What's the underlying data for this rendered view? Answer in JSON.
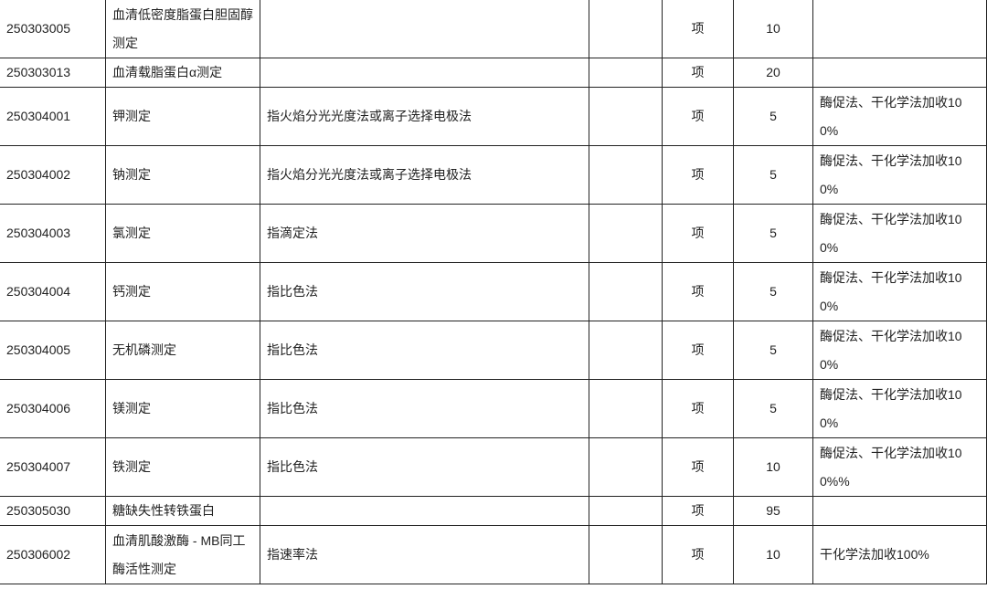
{
  "rows": [
    {
      "code": "250303005",
      "name": "血清低密度脂蛋白胆固醇测定",
      "desc": "",
      "blank": "",
      "unit": "项",
      "price": "10",
      "note": ""
    },
    {
      "code": "250303013",
      "name": "血清载脂蛋白α测定",
      "desc": "",
      "blank": "",
      "unit": "项",
      "price": "20",
      "note": ""
    },
    {
      "code": "250304001",
      "name": "钾测定",
      "desc": "指火焰分光光度法或离子选择电极法",
      "blank": "",
      "unit": "项",
      "price": "5",
      "note": "酶促法、干化学法加收100%"
    },
    {
      "code": "250304002",
      "name": "钠测定",
      "desc": "指火焰分光光度法或离子选择电极法",
      "blank": "",
      "unit": "项",
      "price": "5",
      "note": "酶促法、干化学法加收100%"
    },
    {
      "code": "250304003",
      "name": "氯测定",
      "desc": "指滴定法",
      "blank": "",
      "unit": "项",
      "price": "5",
      "note": "酶促法、干化学法加收100%"
    },
    {
      "code": "250304004",
      "name": "钙测定",
      "desc": "指比色法",
      "blank": "",
      "unit": "项",
      "price": "5",
      "note": "酶促法、干化学法加收100%"
    },
    {
      "code": "250304005",
      "name": "无机磷测定",
      "desc": "指比色法",
      "blank": "",
      "unit": "项",
      "price": "5",
      "note": "酶促法、干化学法加收100%"
    },
    {
      "code": "250304006",
      "name": "镁测定",
      "desc": "指比色法",
      "blank": "",
      "unit": "项",
      "price": "5",
      "note": "酶促法、干化学法加收100%"
    },
    {
      "code": "250304007",
      "name": "铁测定",
      "desc": "指比色法",
      "blank": "",
      "unit": "项",
      "price": "10",
      "note": "酶促法、干化学法加收100%%"
    },
    {
      "code": "250305030",
      "name": "糖缺失性转铁蛋白",
      "desc": "",
      "blank": "",
      "unit": "项",
      "price": "95",
      "note": ""
    },
    {
      "code": "250306002",
      "name": "血清肌酸激酶 - MB同工酶活性测定",
      "desc": "指速率法",
      "blank": "",
      "unit": "项",
      "price": "10",
      "note": "干化学法加收100%"
    }
  ]
}
